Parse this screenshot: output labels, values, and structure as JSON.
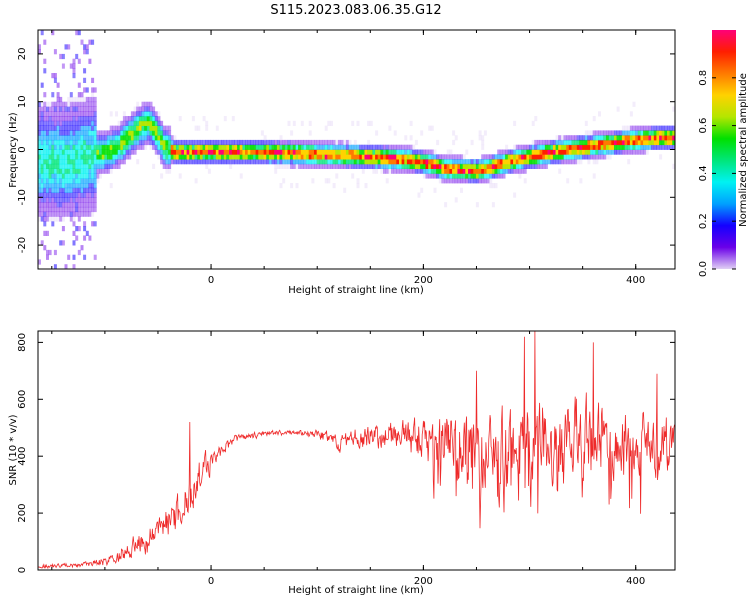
{
  "title": "S115.2023.083.06.35.G12",
  "chart_data": [
    {
      "type": "heatmap",
      "xlabel": "Height of straight line (km)",
      "ylabel": "Frequency (Hz)",
      "xlim": [
        -163,
        437
      ],
      "ylim": [
        -25,
        25
      ],
      "x_ticks": [
        0,
        200,
        400
      ],
      "y_ticks": [
        -20,
        -10,
        0,
        10,
        20
      ],
      "colorbar": {
        "label": "Normalized spectral amplitude",
        "range": [
          0,
          1
        ],
        "ticks": [
          "0.0",
          "0.2",
          "0.4",
          "0.6",
          "0.8"
        ],
        "colors": [
          "#e0d0f4",
          "#6a00e8",
          "#1400ff",
          "#00a0ff",
          "#00f2f2",
          "#00e67a",
          "#00e000",
          "#b4e600",
          "#ffd200",
          "#ff7a00",
          "#ff1e00",
          "#ff0078"
        ]
      },
      "ridge": {
        "description": "dominant frequency band (Hz) vs height (km)",
        "x": [
          -163,
          -140,
          -120,
          -100,
          -90,
          -80,
          -70,
          -60,
          -52,
          -45,
          -35,
          -20,
          0,
          50,
          100,
          150,
          180,
          200,
          220,
          250,
          280,
          300,
          320,
          350,
          380,
          400,
          420,
          437
        ],
        "y": [
          -3,
          -3,
          -2,
          -1,
          0,
          2,
          4,
          5,
          3,
          0,
          -1,
          -1,
          -1,
          -1,
          -1.5,
          -2,
          -2.5,
          -3.2,
          -4.5,
          -5,
          -3,
          -2,
          -1,
          0,
          1,
          1.5,
          2,
          2
        ]
      }
    },
    {
      "type": "line",
      "xlabel": "Height of straight line (km)",
      "ylabel": "SNR (10 * v/v)",
      "xlim": [
        -163,
        437
      ],
      "ylim": [
        0,
        840
      ],
      "x_ticks": [
        0,
        200,
        400
      ],
      "y_ticks": [
        0,
        200,
        400,
        600,
        800
      ],
      "color": "#ee2a2a",
      "envelope": {
        "description": "approximate mean SNR and noise amplitude vs height (km)",
        "x": [
          -163,
          -120,
          -100,
          -80,
          -60,
          -40,
          -20,
          -10,
          0,
          10,
          25,
          50,
          80,
          100,
          120,
          150,
          180,
          200,
          230,
          260,
          300,
          340,
          380,
          420,
          437
        ],
        "mean": [
          12,
          18,
          30,
          60,
          110,
          170,
          260,
          330,
          380,
          420,
          465,
          480,
          485,
          480,
          450,
          470,
          480,
          460,
          440,
          430,
          440,
          440,
          450,
          440,
          450
        ],
        "noise": [
          8,
          12,
          18,
          40,
          60,
          80,
          90,
          80,
          60,
          30,
          18,
          12,
          12,
          20,
          40,
          60,
          70,
          100,
          160,
          180,
          200,
          200,
          180,
          160,
          120
        ],
        "peaks": [
          [
            305,
            840
          ],
          [
            295,
            820
          ],
          [
            360,
            800
          ],
          [
            250,
            700
          ],
          [
            420,
            690
          ],
          [
            -20,
            520
          ]
        ]
      }
    }
  ]
}
